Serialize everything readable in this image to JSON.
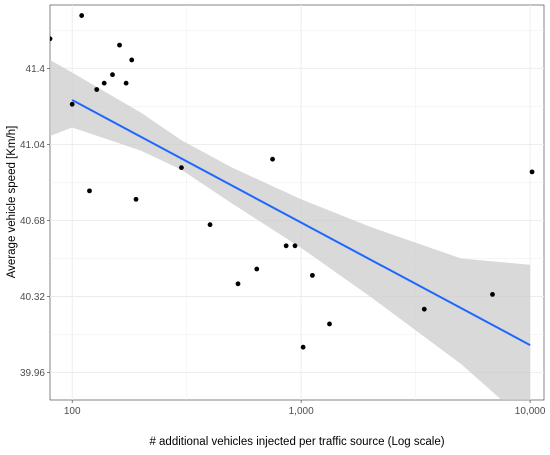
{
  "chart_data": {
    "type": "scatter",
    "x_scale": "log10",
    "xlabel": "# additional vehicles injected per traffic source (Log scale)",
    "ylabel": "Average vehicle speed [Km/h]",
    "xlim": [
      80,
      11500
    ],
    "ylim": [
      39.83,
      41.7
    ],
    "x_ticks": [
      100,
      1000,
      10000
    ],
    "x_tick_labels": [
      "100",
      "1,000",
      "10,000"
    ],
    "y_ticks": [
      39.96,
      40.32,
      40.68,
      41.04,
      41.4
    ],
    "y_tick_labels": [
      "39.96",
      "40.32",
      "40.68",
      "41.04",
      "41.4"
    ],
    "grid": true,
    "points": [
      {
        "x": 80,
        "y": 41.54
      },
      {
        "x": 100,
        "y": 41.23
      },
      {
        "x": 110,
        "y": 41.65
      },
      {
        "x": 119,
        "y": 40.82
      },
      {
        "x": 128,
        "y": 41.3
      },
      {
        "x": 138,
        "y": 41.33
      },
      {
        "x": 150,
        "y": 41.37
      },
      {
        "x": 161,
        "y": 41.51
      },
      {
        "x": 172,
        "y": 41.33
      },
      {
        "x": 182,
        "y": 41.44
      },
      {
        "x": 190,
        "y": 40.78
      },
      {
        "x": 300,
        "y": 40.93
      },
      {
        "x": 400,
        "y": 40.66
      },
      {
        "x": 530,
        "y": 40.38
      },
      {
        "x": 640,
        "y": 40.45
      },
      {
        "x": 750,
        "y": 40.97
      },
      {
        "x": 860,
        "y": 40.56
      },
      {
        "x": 940,
        "y": 40.56
      },
      {
        "x": 1020,
        "y": 40.08
      },
      {
        "x": 1120,
        "y": 40.42
      },
      {
        "x": 1330,
        "y": 40.19
      },
      {
        "x": 3450,
        "y": 40.26
      },
      {
        "x": 6850,
        "y": 40.33
      },
      {
        "x": 10200,
        "y": 40.91
      }
    ],
    "fit": {
      "type": "linear (log x)",
      "line": [
        {
          "x": 100,
          "y": 41.25
        },
        {
          "x": 10000,
          "y": 40.09
        }
      ],
      "band_upper": [
        {
          "x": 80,
          "y": 41.44
        },
        {
          "x": 100,
          "y": 41.38
        },
        {
          "x": 200,
          "y": 41.19
        },
        {
          "x": 300,
          "y": 41.06
        },
        {
          "x": 500,
          "y": 40.93
        },
        {
          "x": 1000,
          "y": 40.78
        },
        {
          "x": 2000,
          "y": 40.65
        },
        {
          "x": 5000,
          "y": 40.5
        },
        {
          "x": 10000,
          "y": 40.47
        }
      ],
      "band_lower": [
        {
          "x": 80,
          "y": 41.08
        },
        {
          "x": 100,
          "y": 41.12
        },
        {
          "x": 200,
          "y": 41.01
        },
        {
          "x": 300,
          "y": 40.92
        },
        {
          "x": 500,
          "y": 40.76
        },
        {
          "x": 1000,
          "y": 40.55
        },
        {
          "x": 2000,
          "y": 40.32
        },
        {
          "x": 5000,
          "y": 40.0
        },
        {
          "x": 10000,
          "y": 39.71
        }
      ],
      "line_color": "#1f66ff",
      "band_color": "#cccccc"
    },
    "point_color": "#000000"
  }
}
